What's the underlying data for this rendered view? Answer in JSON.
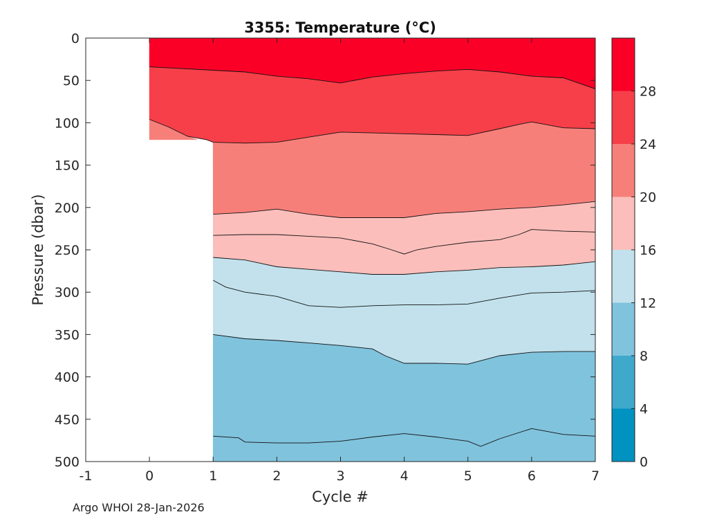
{
  "chart_data": {
    "type": "contour",
    "title": "3355:  Temperature (°C)",
    "xlabel": "Cycle #",
    "ylabel": "Pressure (dbar)",
    "xlim": [
      -1,
      7
    ],
    "ylim": [
      0,
      500
    ],
    "y_reversed": true,
    "xticks": [
      "-1",
      "0",
      "1",
      "2",
      "3",
      "4",
      "5",
      "6",
      "7"
    ],
    "yticks": [
      "0",
      "50",
      "100",
      "150",
      "200",
      "250",
      "300",
      "350",
      "400",
      "450",
      "500"
    ],
    "colorbar": {
      "levels": [
        0,
        4,
        8,
        12,
        16,
        20,
        24,
        28,
        32
      ],
      "tick_labels": [
        "0",
        "4",
        "8",
        "12",
        "16",
        "20",
        "24",
        "28"
      ],
      "colors": [
        "#0092c0",
        "#3fa9cc",
        "#80c3dd",
        "#c2e1ec",
        "#fbbebb",
        "#f77f7a",
        "#f63f48",
        "#fb0027"
      ]
    },
    "data_extent": {
      "cycles_0_to_1_max_pressure": 120,
      "cycles_1_to_7_max_pressure": 500
    },
    "isotherms": [
      {
        "temp": 28,
        "x": [
          0,
          0.5,
          1,
          1.5,
          2,
          2.5,
          3,
          3.5,
          4,
          4.5,
          5,
          5.5,
          6,
          6.5,
          7
        ],
        "p": [
          34,
          36,
          38,
          40,
          45,
          48,
          53,
          46,
          42,
          39,
          37,
          40,
          45,
          47,
          60
        ]
      },
      {
        "temp": 24,
        "x": [
          0,
          0.3,
          0.6,
          0.9,
          1,
          1.5,
          2,
          2.5,
          3,
          3.5,
          4,
          4.5,
          5,
          5.5,
          5.8,
          6,
          6.5,
          7
        ],
        "p": [
          96,
          105,
          116,
          120,
          123,
          124,
          123,
          117,
          111,
          112,
          113,
          114,
          115,
          107,
          102,
          99,
          106,
          107
        ]
      },
      {
        "temp": 20,
        "x": [
          1,
          1.5,
          2,
          2.5,
          3,
          3.5,
          4,
          4.5,
          5,
          5.5,
          6,
          6.5,
          7
        ],
        "p": [
          208,
          206,
          202,
          208,
          212,
          212,
          212,
          207,
          205,
          202,
          200,
          197,
          193
        ]
      },
      {
        "temp": 18,
        "x": [
          1,
          1.5,
          2,
          2.5,
          3,
          3.5,
          3.8,
          4,
          4.2,
          4.5,
          5,
          5.5,
          5.8,
          6,
          6.5,
          7
        ],
        "p": [
          233,
          232,
          232,
          234,
          236,
          243,
          250,
          255,
          250,
          246,
          241,
          238,
          232,
          226,
          228,
          229
        ]
      },
      {
        "temp": 16,
        "x": [
          1,
          1.5,
          2,
          2.5,
          3,
          3.5,
          4,
          4.5,
          5,
          5.5,
          6,
          6.5,
          7
        ],
        "p": [
          259,
          262,
          270,
          273,
          276,
          279,
          279,
          276,
          274,
          271,
          270,
          268,
          264
        ]
      },
      {
        "temp": 14,
        "x": [
          1,
          1.2,
          1.5,
          2,
          2.5,
          3,
          3.5,
          4,
          4.5,
          5,
          5.5,
          6,
          6.5,
          7
        ],
        "p": [
          286,
          294,
          300,
          305,
          316,
          318,
          316,
          315,
          315,
          314,
          307,
          301,
          300,
          298
        ]
      },
      {
        "temp": 12,
        "x": [
          1,
          1.5,
          2,
          2.5,
          3,
          3.5,
          3.7,
          4,
          4.5,
          5,
          5.5,
          6,
          6.5,
          7
        ],
        "p": [
          350,
          355,
          357,
          360,
          363,
          367,
          375,
          384,
          384,
          385,
          375,
          371,
          370,
          370
        ]
      },
      {
        "temp": 10,
        "x": [
          1,
          1.4,
          1.5,
          2,
          2.5,
          3,
          3.5,
          4,
          4.5,
          5,
          5.2,
          5.5,
          6,
          6.5,
          7
        ],
        "p": [
          470,
          472,
          477,
          478,
          478,
          476,
          471,
          467,
          471,
          476,
          482,
          473,
          461,
          468,
          470
        ]
      }
    ]
  },
  "credit": "Argo WHOI 28-Jan-2026"
}
